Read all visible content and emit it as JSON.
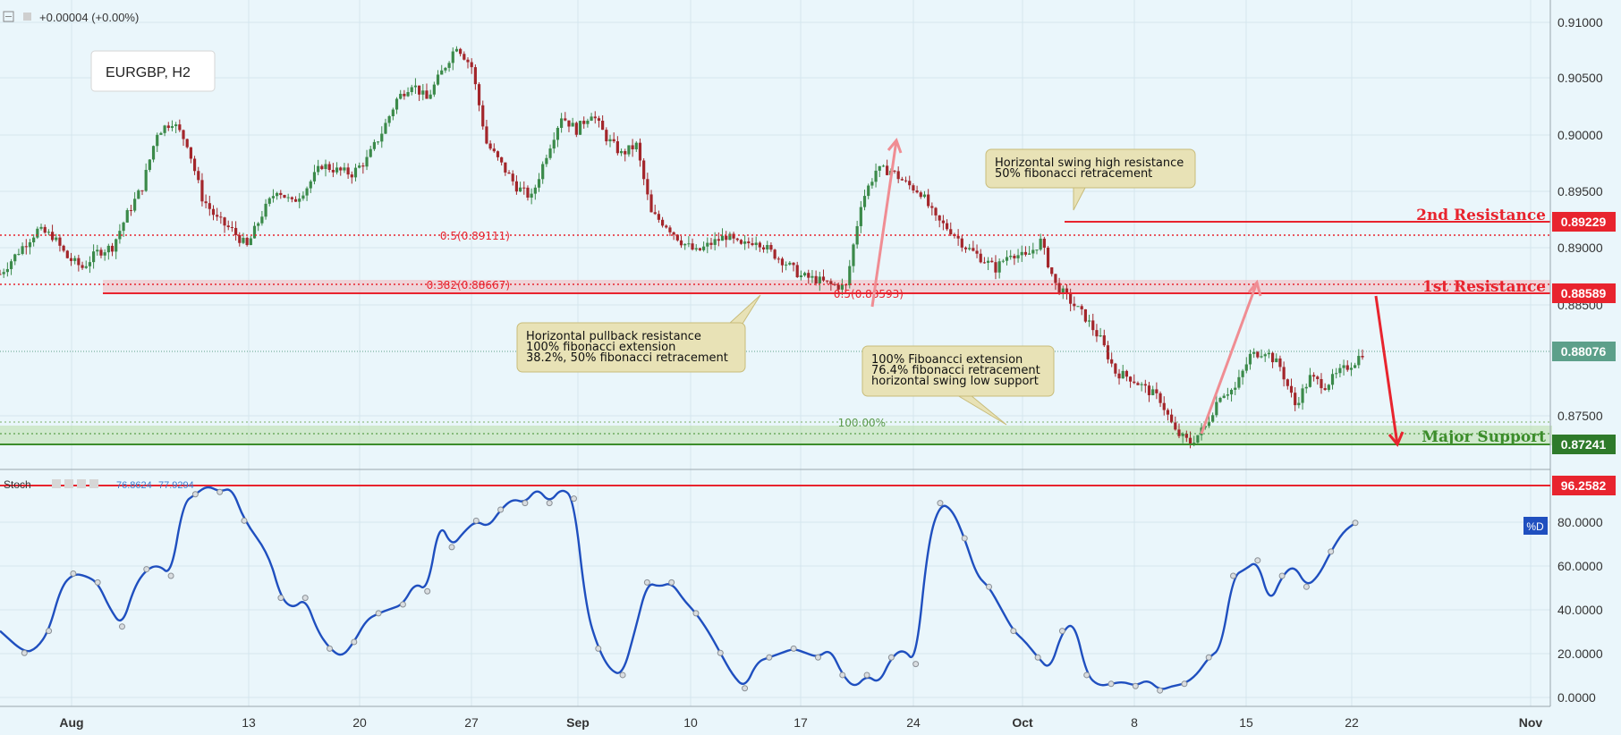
{
  "header": {
    "change_text": "+0.00004 (+0.00%)",
    "symbol_label": "EURGBP, H2"
  },
  "colors": {
    "background": "#eaf6fb",
    "grid": "#d5e6ee",
    "candle_up": "#3b8a4a",
    "candle_down": "#a3262b",
    "resistance": "#e8242e",
    "support": "#3c8d2b",
    "current_price": "#5da08a",
    "stoch_line": "#1f4fbf"
  },
  "chart_data": [
    {
      "type": "candlestick",
      "title": "EURGBP, H2",
      "x_tick_labels": [
        "Aug",
        "13",
        "20",
        "27",
        "Sep",
        "10",
        "17",
        "24",
        "Oct",
        "8",
        "15",
        "22",
        "Nov"
      ],
      "y_tick_labels": [
        "0.91000",
        "0.90500",
        "0.90000",
        "0.89500",
        "0.89000",
        "0.88500",
        "0.87500"
      ],
      "ylim": [
        0.8705,
        0.9123
      ],
      "close_path": [
        [
          0,
          0.888
        ],
        [
          6,
          0.8905
        ],
        [
          10,
          0.892
        ],
        [
          14,
          0.8915
        ],
        [
          18,
          0.8895
        ],
        [
          22,
          0.8886
        ],
        [
          26,
          0.89
        ],
        [
          30,
          0.8905
        ],
        [
          34,
          0.8935
        ],
        [
          38,
          0.896
        ],
        [
          42,
          0.901
        ],
        [
          46,
          0.902
        ],
        [
          50,
          0.9
        ],
        [
          54,
          0.895
        ],
        [
          58,
          0.893
        ],
        [
          62,
          0.892
        ],
        [
          66,
          0.8905
        ],
        [
          70,
          0.8935
        ],
        [
          74,
          0.8958
        ],
        [
          78,
          0.8945
        ],
        [
          82,
          0.896
        ],
        [
          86,
          0.898
        ],
        [
          90,
          0.8975
        ],
        [
          94,
          0.8972
        ],
        [
          98,
          0.8985
        ],
        [
          102,
          0.901
        ],
        [
          106,
          0.904
        ],
        [
          110,
          0.9055
        ],
        [
          114,
          0.904
        ],
        [
          118,
          0.9065
        ],
        [
          122,
          0.909
        ],
        [
          126,
          0.907
        ],
        [
          130,
          0.9
        ],
        [
          134,
          0.898
        ],
        [
          138,
          0.896
        ],
        [
          142,
          0.895
        ],
        [
          146,
          0.899
        ],
        [
          150,
          0.9025
        ],
        [
          154,
          0.9012
        ],
        [
          158,
          0.9028
        ],
        [
          162,
          0.9005
        ],
        [
          166,
          0.899
        ],
        [
          170,
          0.8998
        ],
        [
          174,
          0.8935
        ],
        [
          178,
          0.8925
        ],
        [
          182,
          0.891
        ],
        [
          186,
          0.89
        ],
        [
          190,
          0.8908
        ],
        [
          194,
          0.8915
        ],
        [
          198,
          0.8905
        ],
        [
          202,
          0.8912
        ],
        [
          206,
          0.89
        ],
        [
          210,
          0.889
        ],
        [
          214,
          0.8878
        ],
        [
          218,
          0.8875
        ],
        [
          222,
          0.887
        ],
        [
          226,
          0.8868
        ],
        [
          230,
          0.8945
        ],
        [
          234,
          0.8975
        ],
        [
          238,
          0.8975
        ],
        [
          242,
          0.8963
        ],
        [
          246,
          0.8955
        ],
        [
          250,
          0.893
        ],
        [
          254,
          0.892
        ],
        [
          258,
          0.8905
        ],
        [
          262,
          0.8895
        ],
        [
          266,
          0.8885
        ],
        [
          270,
          0.89
        ],
        [
          274,
          0.8895
        ],
        [
          278,
          0.891
        ],
        [
          282,
          0.887
        ],
        [
          286,
          0.8855
        ],
        [
          290,
          0.884
        ],
        [
          294,
          0.882
        ],
        [
          298,
          0.879
        ],
        [
          302,
          0.8785
        ],
        [
          306,
          0.8775
        ],
        [
          310,
          0.8765
        ],
        [
          314,
          0.8735
        ],
        [
          318,
          0.8725
        ],
        [
          322,
          0.874
        ],
        [
          326,
          0.877
        ],
        [
          330,
          0.8775
        ],
        [
          334,
          0.8805
        ],
        [
          338,
          0.881
        ],
        [
          342,
          0.8795
        ],
        [
          346,
          0.876
        ],
        [
          350,
          0.8785
        ],
        [
          354,
          0.8778
        ],
        [
          358,
          0.879
        ],
        [
          362,
          0.88
        ],
        [
          364,
          0.8808
        ]
      ],
      "levels": {
        "second_resistance": {
          "label": "2nd Resistance",
          "price": "0.89229"
        },
        "first_resistance": {
          "label": "1st Resistance",
          "price": "0.88589"
        },
        "current": {
          "price": "0.88076"
        },
        "major_support": {
          "label": "Major Support",
          "price": "0.87241"
        }
      },
      "fib_labels": {
        "f05_top": "0.5(0.89111)",
        "f0382": "0.382(0.88667)",
        "f05_mid": "0.5(0.88593)",
        "f100": "100.00%"
      },
      "annotations": {
        "swing_high": [
          "Horizontal swing high resistance",
          "50% fibonacci retracement"
        ],
        "pullback": [
          "Horizontal pullback resistance",
          "100% fibonacci extension",
          "38.2%, 50% fibonacci retracement"
        ],
        "fib_extension": [
          "100% Fiboancci extension",
          "76.4% fibonacci retracement",
          "horizontal swing low support"
        ]
      }
    },
    {
      "type": "line",
      "legend_name": "Stoch",
      "values_label": [
        "76.8624",
        "77.9294"
      ],
      "y_tick_labels": [
        "80.0000",
        "60.0000",
        "40.0000",
        "20.0000",
        "0.0000"
      ],
      "ylim": [
        -3,
        100
      ],
      "level_price": "96.2582",
      "d_label": "%D",
      "line": [
        [
          0,
          30
        ],
        [
          4,
          20
        ],
        [
          6,
          22
        ],
        [
          8,
          30
        ],
        [
          10,
          50
        ],
        [
          12,
          56
        ],
        [
          14,
          55
        ],
        [
          16,
          52
        ],
        [
          18,
          40
        ],
        [
          20,
          32
        ],
        [
          22,
          50
        ],
        [
          24,
          58
        ],
        [
          26,
          60
        ],
        [
          28,
          55
        ],
        [
          30,
          88
        ],
        [
          32,
          92
        ],
        [
          34,
          96
        ],
        [
          36,
          93
        ],
        [
          38,
          95
        ],
        [
          40,
          80
        ],
        [
          44,
          65
        ],
        [
          46,
          45
        ],
        [
          48,
          40
        ],
        [
          50,
          45
        ],
        [
          52,
          30
        ],
        [
          54,
          22
        ],
        [
          56,
          18
        ],
        [
          58,
          25
        ],
        [
          60,
          35
        ],
        [
          62,
          38
        ],
        [
          64,
          40
        ],
        [
          66,
          42
        ],
        [
          68,
          52
        ],
        [
          70,
          48
        ],
        [
          72,
          80
        ],
        [
          74,
          68
        ],
        [
          76,
          75
        ],
        [
          78,
          80
        ],
        [
          80,
          77
        ],
        [
          82,
          85
        ],
        [
          84,
          90
        ],
        [
          86,
          88
        ],
        [
          88,
          95
        ],
        [
          90,
          88
        ],
        [
          92,
          95
        ],
        [
          94,
          90
        ],
        [
          96,
          40
        ],
        [
          98,
          22
        ],
        [
          100,
          12
        ],
        [
          102,
          10
        ],
        [
          104,
          30
        ],
        [
          106,
          52
        ],
        [
          108,
          50
        ],
        [
          110,
          52
        ],
        [
          112,
          44
        ],
        [
          114,
          38
        ],
        [
          116,
          30
        ],
        [
          118,
          20
        ],
        [
          120,
          10
        ],
        [
          122,
          4
        ],
        [
          124,
          16
        ],
        [
          126,
          18
        ],
        [
          128,
          20
        ],
        [
          130,
          22
        ],
        [
          132,
          20
        ],
        [
          134,
          18
        ],
        [
          136,
          22
        ],
        [
          138,
          10
        ],
        [
          140,
          4
        ],
        [
          142,
          10
        ],
        [
          144,
          6
        ],
        [
          146,
          18
        ],
        [
          148,
          22
        ],
        [
          150,
          15
        ],
        [
          152,
          70
        ],
        [
          154,
          88
        ],
        [
          156,
          85
        ],
        [
          158,
          72
        ],
        [
          160,
          55
        ],
        [
          162,
          50
        ],
        [
          164,
          40
        ],
        [
          166,
          30
        ],
        [
          168,
          25
        ],
        [
          170,
          18
        ],
        [
          172,
          12
        ],
        [
          174,
          30
        ],
        [
          176,
          34
        ],
        [
          178,
          10
        ],
        [
          180,
          5
        ],
        [
          182,
          6
        ],
        [
          184,
          7
        ],
        [
          186,
          5
        ],
        [
          188,
          8
        ],
        [
          190,
          3
        ],
        [
          192,
          5
        ],
        [
          194,
          6
        ],
        [
          196,
          10
        ],
        [
          198,
          18
        ],
        [
          200,
          22
        ],
        [
          202,
          55
        ],
        [
          204,
          58
        ],
        [
          206,
          62
        ],
        [
          208,
          42
        ],
        [
          210,
          55
        ],
        [
          212,
          60
        ],
        [
          214,
          50
        ],
        [
          216,
          55
        ],
        [
          218,
          66
        ],
        [
          220,
          75
        ],
        [
          222,
          79
        ]
      ]
    }
  ]
}
